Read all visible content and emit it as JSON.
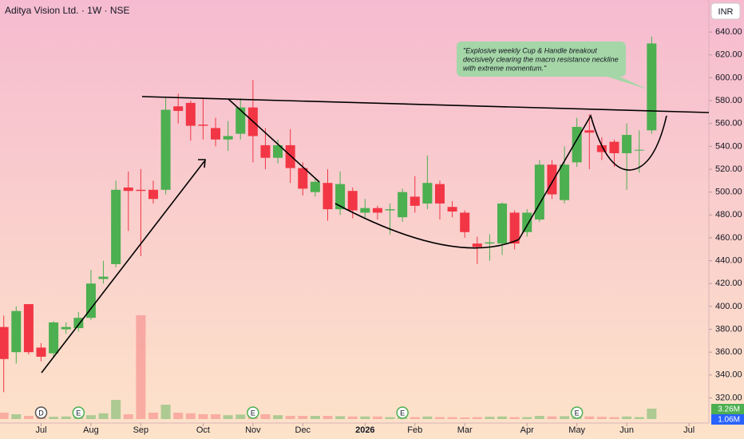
{
  "chart_data": {
    "type": "candlestick",
    "title": "Aditya Vision Ltd. · 1W · NSE",
    "currency": "INR",
    "annotation": [
      "\"Explosive weekly Cup & Handle breakout",
      "decisively clearing the macro resistance neckline",
      "with extreme momentum.\""
    ],
    "up_color": "#4caf50",
    "down_color": "#f23645",
    "open": [
      382,
      360,
      402,
      364,
      359,
      380,
      381,
      390,
      424,
      437,
      504,
      502,
      502,
      502,
      575,
      578,
      559,
      556,
      546,
      551,
      574,
      541,
      530,
      541,
      521,
      500,
      508,
      485,
      501,
      482,
      486,
      484,
      478,
      496,
      490,
      507,
      487,
      482,
      455,
      455,
      455,
      482,
      465,
      476,
      524,
      493,
      526,
      554,
      541,
      544,
      534,
      537,
      554
    ],
    "high": [
      392,
      400,
      402,
      368,
      387,
      386,
      395,
      432,
      440,
      510,
      518,
      520,
      510,
      582,
      586,
      580,
      582,
      565,
      562,
      582,
      598,
      556,
      546,
      555,
      526,
      512,
      520,
      518,
      504,
      494,
      488,
      490,
      503,
      514,
      532,
      510,
      492,
      484,
      461,
      463,
      491,
      484,
      485,
      528,
      528,
      540,
      565,
      568,
      548,
      546,
      560,
      554,
      636
    ],
    "low": [
      325,
      350,
      358,
      352,
      356,
      376,
      378,
      388,
      420,
      434,
      466,
      444,
      490,
      498,
      560,
      545,
      546,
      540,
      536,
      546,
      526,
      520,
      525,
      508,
      497,
      496,
      475,
      480,
      477,
      478,
      476,
      463,
      474,
      482,
      485,
      476,
      478,
      460,
      437,
      440,
      445,
      450,
      461,
      474,
      494,
      490,
      522,
      520,
      528,
      522,
      502,
      517,
      551
    ],
    "close": [
      354,
      396,
      360,
      356,
      386,
      382,
      390,
      420,
      426,
      502,
      501,
      501,
      494,
      572,
      571,
      558,
      558,
      546,
      549,
      574,
      549,
      530,
      541,
      521,
      503,
      509,
      485,
      507,
      484,
      486,
      482,
      485,
      500,
      488,
      508,
      490,
      483,
      465,
      452,
      456,
      490,
      455,
      482,
      524,
      498,
      524,
      557,
      552,
      535,
      534,
      550,
      537,
      630
    ],
    "volume": {
      "values": [
        2.0,
        1.5,
        1.0,
        0.8,
        0.7,
        0.8,
        0.9,
        1.2,
        1.8,
        6.0,
        1.5,
        32.5,
        2.0,
        4.5,
        2.0,
        1.8,
        1.5,
        1.5,
        1.2,
        1.4,
        2.0,
        1.5,
        1.2,
        1.0,
        1.0,
        1.0,
        1.0,
        0.9,
        0.8,
        0.8,
        0.8,
        0.6,
        0.7,
        0.6,
        0.8,
        0.6,
        0.6,
        0.5,
        0.6,
        0.7,
        0.8,
        0.6,
        0.6,
        1.0,
        0.8,
        0.9,
        1.2,
        0.8,
        0.7,
        0.6,
        0.8,
        0.6,
        3.26
      ],
      "last_label": "3.26M",
      "average_label": "1.06M"
    },
    "xlim": [
      -0.3,
      56.4
    ],
    "ylim": [
      298,
      668
    ],
    "yticks": [
      320,
      340,
      360,
      380,
      400,
      420,
      440,
      460,
      480,
      500,
      520,
      540,
      560,
      580,
      600,
      620,
      640
    ],
    "ytick_labels": [
      "320.00",
      "340.00",
      "360.00",
      "380.00",
      "400.00",
      "420.00",
      "440.00",
      "460.00",
      "480.00",
      "500.00",
      "520.00",
      "540.00",
      "560.00",
      "580.00",
      "600.00",
      "620.00",
      "640.00"
    ],
    "xticks": [
      {
        "value": 3,
        "label": "Jul"
      },
      {
        "value": 7,
        "label": "Aug"
      },
      {
        "value": 11,
        "label": "Sep"
      },
      {
        "value": 16,
        "label": "Oct"
      },
      {
        "value": 20,
        "label": "Nov"
      },
      {
        "value": 24,
        "label": "Dec"
      },
      {
        "value": 29,
        "label": "2026"
      },
      {
        "value": 33,
        "label": "Feb"
      },
      {
        "value": 37,
        "label": "Mar"
      },
      {
        "value": 42,
        "label": "Apr"
      },
      {
        "value": 46,
        "label": "May"
      },
      {
        "value": 50,
        "label": "Jun"
      },
      {
        "value": 55,
        "label": "Jul"
      }
    ],
    "events": [
      {
        "x": 3,
        "label": "D"
      },
      {
        "x": 6,
        "label": "E"
      },
      {
        "x": 20,
        "label": "E"
      },
      {
        "x": 32,
        "label": "E"
      },
      {
        "x": 46,
        "label": "E"
      }
    ]
  }
}
